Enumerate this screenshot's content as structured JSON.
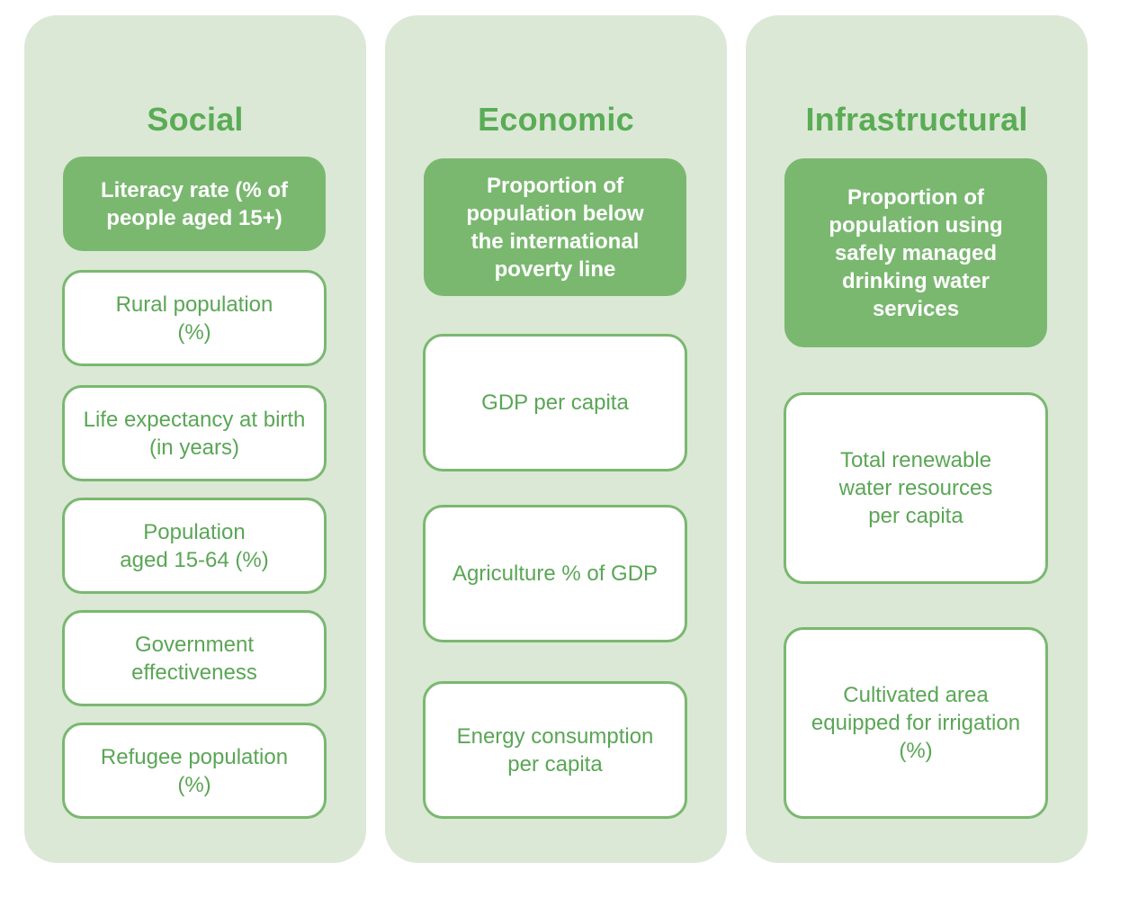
{
  "columns": [
    {
      "title": "Social",
      "primary": "Literacy rate (% of\npeople aged 15+)",
      "items": [
        "Rural population\n(%)",
        "Life expectancy at birth\n(in years)",
        "Population\naged 15-64 (%)",
        "Government\neffectiveness",
        "Refugee population\n(%)"
      ]
    },
    {
      "title": "Economic",
      "primary": "Proportion of\npopulation below\nthe international\npoverty line",
      "items": [
        "GDP per capita",
        "Agriculture % of GDP",
        "Energy consumption\nper capita"
      ]
    },
    {
      "title": "Infrastructural",
      "primary": "Proportion of\npopulation using\nsafely managed\ndrinking water\nservices",
      "items": [
        "Total renewable\nwater resources\nper capita",
        "Cultivated area\nequipped for irrigation\n(%)"
      ]
    }
  ],
  "colors": {
    "panel_background": "#dbe8d6",
    "accent_green": "#7ab870",
    "title_green": "#5aac55",
    "text_green": "#5aa655"
  }
}
